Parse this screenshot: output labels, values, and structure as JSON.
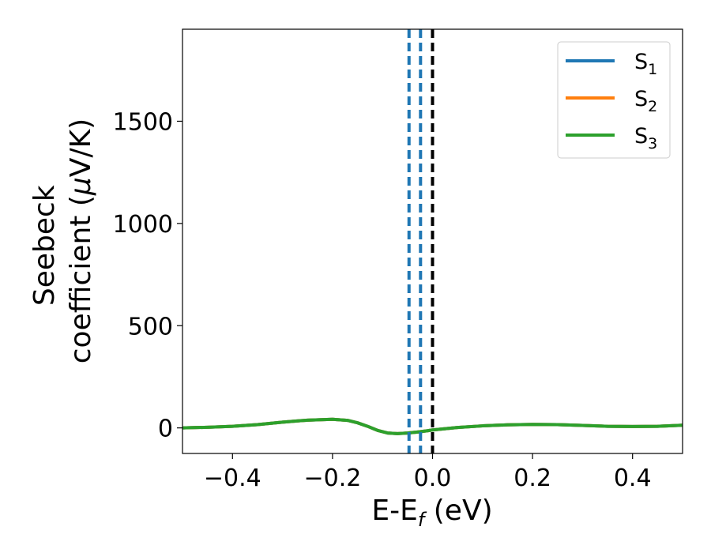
{
  "chart_data": {
    "type": "line",
    "title": "",
    "xlabel": {
      "main": "E-E",
      "sub": "f",
      "suffix": " (eV)"
    },
    "ylabel": {
      "line1": "Seebeck",
      "line2a": "coefficient  (",
      "mu": "μ",
      "line2b": "V/K)"
    },
    "xlim": [
      -0.5,
      0.5
    ],
    "ylim": [
      -125,
      1950
    ],
    "xticks": [
      -0.4,
      -0.2,
      0.0,
      0.2,
      0.4
    ],
    "xtick_labels": [
      "−0.4",
      "−0.2",
      "0.0",
      "0.2",
      "0.4"
    ],
    "yticks": [
      0,
      500,
      1000,
      1500
    ],
    "ytick_labels": [
      "0",
      "500",
      "1000",
      "1500"
    ],
    "grid": false,
    "legend_position": "top-right",
    "series": [
      {
        "name": "S",
        "sub": "1",
        "color": "#1f77b4",
        "x": [
          -0.5,
          -0.45,
          -0.4,
          -0.35,
          -0.3,
          -0.25,
          -0.2,
          -0.17,
          -0.15,
          -0.13,
          -0.11,
          -0.09,
          -0.07,
          -0.05,
          -0.03,
          -0.01,
          0.0,
          0.05,
          0.1,
          0.15,
          0.2,
          0.25,
          0.3,
          0.35,
          0.4,
          0.45,
          0.5
        ],
        "y": [
          0,
          3,
          8,
          16,
          28,
          38,
          42,
          37,
          25,
          8,
          -12,
          -25,
          -28,
          -25,
          -20,
          -14,
          -10,
          2,
          10,
          15,
          17,
          16,
          12,
          8,
          7,
          8,
          13
        ]
      },
      {
        "name": "S",
        "sub": "2",
        "color": "#ff7f0e",
        "x": [
          -0.5,
          -0.45,
          -0.4,
          -0.35,
          -0.3,
          -0.25,
          -0.2,
          -0.17,
          -0.15,
          -0.13,
          -0.11,
          -0.09,
          -0.07,
          -0.05,
          -0.03,
          -0.01,
          0.0,
          0.05,
          0.1,
          0.15,
          0.2,
          0.25,
          0.3,
          0.35,
          0.4,
          0.45,
          0.5
        ],
        "y": [
          0,
          3,
          8,
          16,
          28,
          38,
          42,
          37,
          25,
          8,
          -12,
          -25,
          -28,
          -25,
          -20,
          -14,
          -10,
          2,
          10,
          15,
          17,
          16,
          12,
          8,
          7,
          8,
          13
        ]
      },
      {
        "name": "S",
        "sub": "3",
        "color": "#2ca02c",
        "x": [
          -0.5,
          -0.45,
          -0.4,
          -0.35,
          -0.3,
          -0.25,
          -0.2,
          -0.17,
          -0.15,
          -0.13,
          -0.11,
          -0.09,
          -0.07,
          -0.05,
          -0.03,
          -0.01,
          0.0,
          0.05,
          0.1,
          0.15,
          0.2,
          0.25,
          0.3,
          0.35,
          0.4,
          0.45,
          0.5
        ],
        "y": [
          0,
          3,
          8,
          16,
          28,
          38,
          42,
          37,
          25,
          8,
          -12,
          -25,
          -28,
          -25,
          -20,
          -14,
          -10,
          2,
          10,
          15,
          17,
          16,
          12,
          8,
          7,
          8,
          13
        ]
      }
    ],
    "vlines": [
      {
        "x": -0.047,
        "color": "#1f77b4",
        "style": "dashed"
      },
      {
        "x": -0.024,
        "color": "#1f77b4",
        "style": "dashed"
      },
      {
        "x": 0.0,
        "color": "#000000",
        "style": "dashed"
      }
    ]
  }
}
